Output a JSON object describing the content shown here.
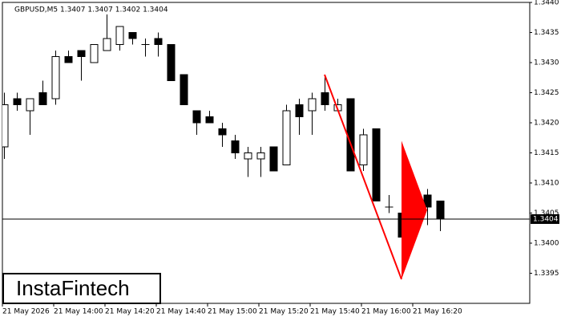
{
  "chart_data": {
    "type": "candlestick",
    "title": "GBPUSD,M5  1.3407 1.3407 1.3402 1.3404",
    "brand": "InstaFintech",
    "categories": [
      "21 May 2026",
      null,
      null,
      null,
      "21 May 14:00",
      null,
      null,
      null,
      "21 May 14:20",
      null,
      null,
      null,
      "21 May 14:40",
      null,
      null,
      null,
      "21 May 15:00",
      null,
      null,
      null,
      "21 May 15:20",
      null,
      null,
      null,
      "21 May 15:40",
      null,
      null,
      null,
      "21 May 16:00",
      null,
      null,
      null,
      "21 May 16:20",
      null,
      null
    ],
    "open": [
      1.3416,
      1.3424,
      1.3422,
      1.3425,
      1.3424,
      1.3431,
      1.3432,
      1.343,
      1.3432,
      1.3433,
      1.3435,
      1.3433,
      1.3434,
      1.3433,
      1.3428,
      1.3422,
      1.3421,
      1.3419,
      1.3417,
      1.3414,
      1.3414,
      1.3416,
      1.3413,
      1.3423,
      1.3422,
      1.3425,
      1.3422,
      1.3424,
      1.3413,
      1.3419,
      1.3406,
      1.3405,
      1.3402,
      1.3408,
      1.3407
    ],
    "high": [
      1.3425,
      1.3425,
      1.3424,
      1.3427,
      1.3432,
      1.3432,
      1.3432,
      1.3433,
      1.3438,
      1.3436,
      1.3435,
      1.3434,
      1.3435,
      1.3433,
      1.3428,
      1.3422,
      1.3422,
      1.342,
      1.3418,
      1.3416,
      1.3416,
      1.3416,
      1.3423,
      1.3424,
      1.3425,
      1.3428,
      1.3424,
      1.3424,
      1.3419,
      1.3419,
      1.3408,
      1.3408,
      1.3409,
      1.3409,
      1.3407
    ],
    "low": [
      1.3414,
      1.3422,
      1.3418,
      1.3423,
      1.3423,
      1.343,
      1.3427,
      1.343,
      1.3432,
      1.3432,
      1.3433,
      1.3431,
      1.3431,
      1.3427,
      1.3423,
      1.3418,
      1.342,
      1.3416,
      1.3414,
      1.3411,
      1.3411,
      1.3412,
      1.3413,
      1.3418,
      1.3418,
      1.3422,
      1.3422,
      1.3412,
      1.3412,
      1.3407,
      1.3405,
      1.3401,
      1.3402,
      1.3403,
      1.3402
    ],
    "close": [
      1.3423,
      1.3423,
      1.3424,
      1.3423,
      1.3431,
      1.343,
      1.3431,
      1.3433,
      1.3434,
      1.3436,
      1.3434,
      1.3433,
      1.3433,
      1.3427,
      1.3423,
      1.342,
      1.342,
      1.3418,
      1.3415,
      1.3415,
      1.3415,
      1.3412,
      1.3422,
      1.3421,
      1.3424,
      1.3423,
      1.3423,
      1.3412,
      1.3418,
      1.3407,
      1.3406,
      1.3401,
      1.3409,
      1.3406,
      1.3404
    ],
    "ylim": [
      1.339,
      1.344
    ],
    "yticks": [
      {
        "value": 1.3395,
        "label": "1.3395"
      },
      {
        "value": 1.34,
        "label": "1.3400"
      },
      {
        "value": 1.3405,
        "label": "1.3405"
      },
      {
        "value": 1.341,
        "label": "1.3410"
      },
      {
        "value": 1.3415,
        "label": "1.3415"
      },
      {
        "value": 1.342,
        "label": "1.3420"
      },
      {
        "value": 1.3425,
        "label": "1.3425"
      },
      {
        "value": 1.343,
        "label": "1.3430"
      },
      {
        "value": 1.3435,
        "label": "1.3435"
      },
      {
        "value": 1.344,
        "label": "1.3440"
      }
    ],
    "current_price": {
      "value": 1.3404,
      "label": "1.3404"
    },
    "pattern": {
      "color": "#ff0000",
      "pole": {
        "index": [
          25,
          31
        ],
        "price": [
          1.3428,
          1.3394
        ]
      },
      "pennant": {
        "index": [
          31,
          31,
          33
        ],
        "price": [
          1.3417,
          1.3394,
          1.34055
        ]
      }
    }
  }
}
